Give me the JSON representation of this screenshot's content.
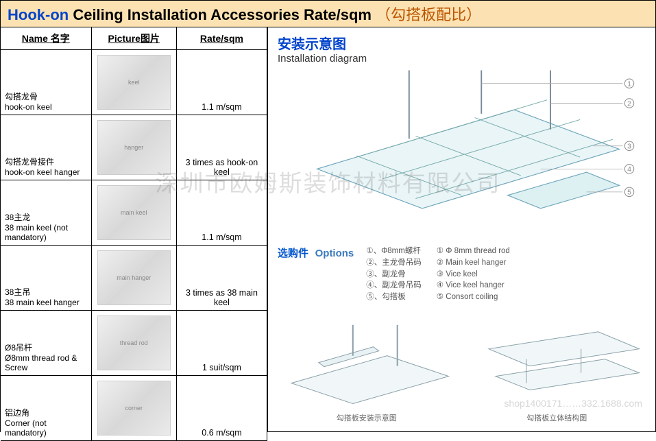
{
  "title": {
    "hook": "Hook-on",
    "rest": " Ceiling Installation Accessories Rate/sqm",
    "cn": "（勾搭板配比）"
  },
  "table": {
    "headers": {
      "name": "Name 名字",
      "picture": "Picture图片",
      "rate": "Rate/sqm"
    },
    "rows": [
      {
        "name_cn": "勾搭龙骨",
        "name_en": "hook-on keel",
        "rate": "1.1 m/sqm",
        "pic_label": "keel"
      },
      {
        "name_cn": "勾搭龙骨接件",
        "name_en": "hook-on keel hanger",
        "rate": "3 times as hook-on keel",
        "pic_label": "hanger"
      },
      {
        "name_cn": "38主龙",
        "name_en": "38 main keel  (not mandatory)",
        "rate": "1.1 m/sqm",
        "pic_label": "main keel"
      },
      {
        "name_cn": "38主吊",
        "name_en": "38 main keel hanger",
        "rate": "3 times as 38 main keel",
        "pic_label": "main hanger"
      },
      {
        "name_cn": "Ø8吊杆",
        "name_en": "Ø8mm thread rod & Screw",
        "rate": "1 suit/sqm",
        "pic_label": "thread rod"
      },
      {
        "name_cn": "铝边角",
        "name_en": "Corner (not mandatory)",
        "rate": "0.6 m/sqm",
        "pic_label": "corner"
      }
    ]
  },
  "diagram": {
    "title_cn": "安装示意图",
    "title_en": "Installation diagram",
    "options_title_cn": "选购件",
    "options_title_en": "Options",
    "options": [
      {
        "num": "①",
        "cn": "Φ8mm螺杆",
        "en": "Φ 8mm thread rod"
      },
      {
        "num": "②",
        "cn": "主龙骨吊码",
        "en": "Main keel hanger"
      },
      {
        "num": "③",
        "cn": "副龙骨",
        "en": "Vice keel"
      },
      {
        "num": "④",
        "cn": "副龙骨吊码",
        "en": "Vice keel hanger"
      },
      {
        "num": "⑤",
        "cn": "勾搭板",
        "en": "Consort coiling"
      }
    ],
    "bottom_captions": {
      "left": "勾搭板安装示意图",
      "right": "勾搭板立体结构图"
    }
  },
  "watermark": "深圳市欧姆斯装饰材料有限公司",
  "watermark2": "shop1400171……332.1688.com",
  "colors": {
    "title_bg": "#fce2b2",
    "hook_blue": "#0044cc",
    "diagram_fill": "#d4ecef",
    "diagram_stroke": "#6fa6bb",
    "grid_line": "#8aa"
  }
}
